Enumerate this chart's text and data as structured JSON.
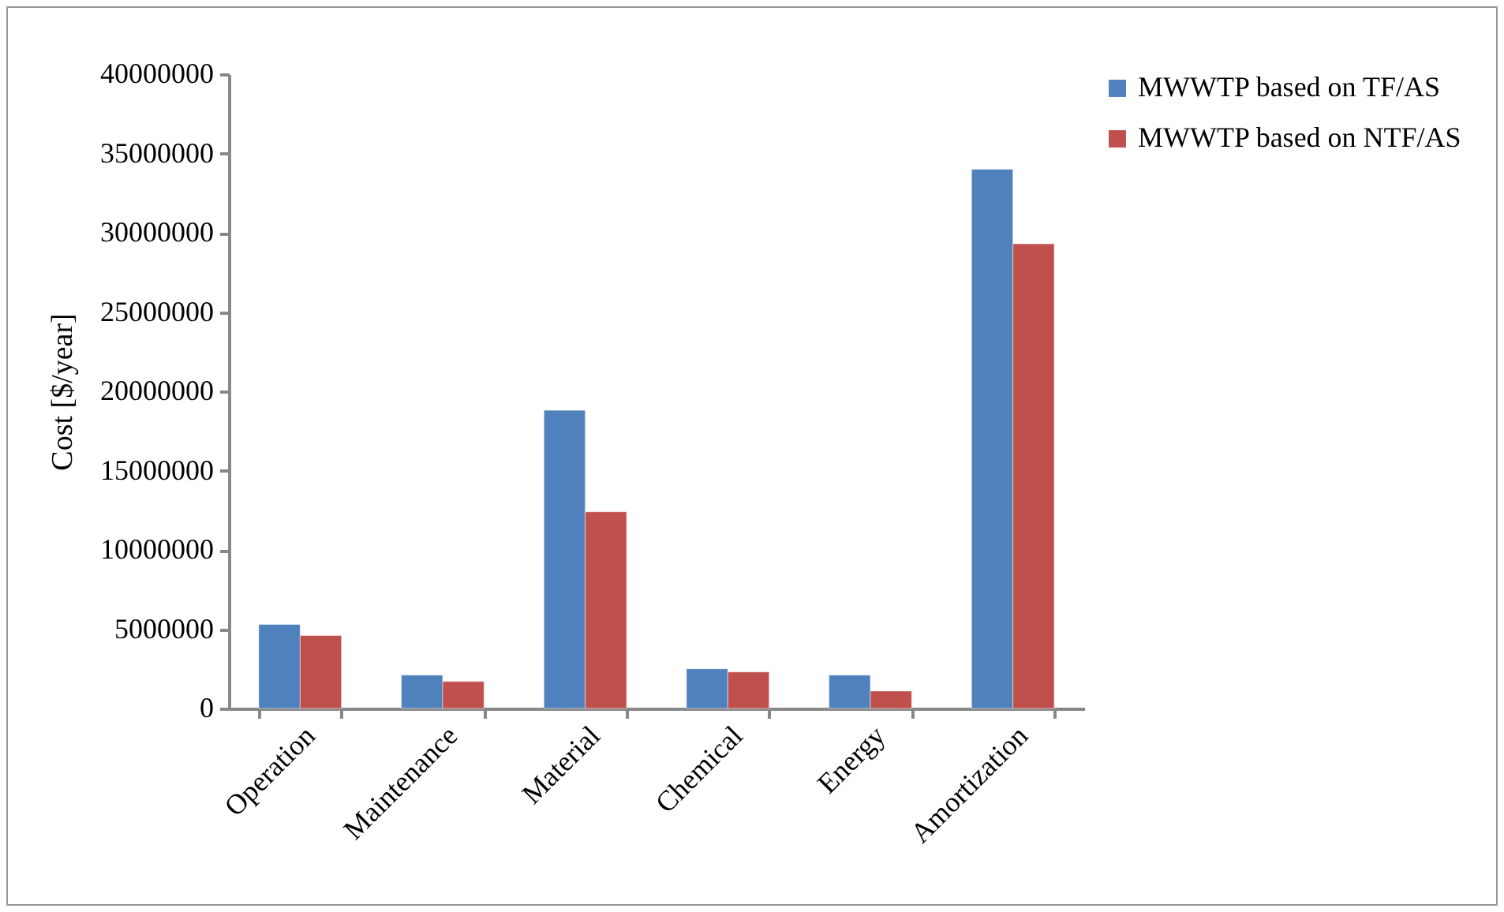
{
  "chart_data": {
    "type": "bar",
    "ylabel": "Cost [$/year]",
    "categories": [
      "Operation",
      "Maintenance",
      "Material",
      "Chemical",
      "Energy",
      "Amortization"
    ],
    "series": [
      {
        "name": "MWWTP based on TF/AS",
        "color": "#4f81bd",
        "values": [
          5300000,
          2100000,
          18800000,
          2500000,
          2100000,
          34000000
        ]
      },
      {
        "name": "MWWTP based on NTF/AS",
        "color": "#c0504d",
        "values": [
          4600000,
          1700000,
          12400000,
          2300000,
          1100000,
          29300000
        ]
      }
    ],
    "ylim": [
      0,
      40000000
    ],
    "yticks": [
      0,
      5000000,
      10000000,
      15000000,
      20000000,
      25000000,
      30000000,
      35000000,
      40000000
    ],
    "grid": false,
    "legend": "right"
  }
}
